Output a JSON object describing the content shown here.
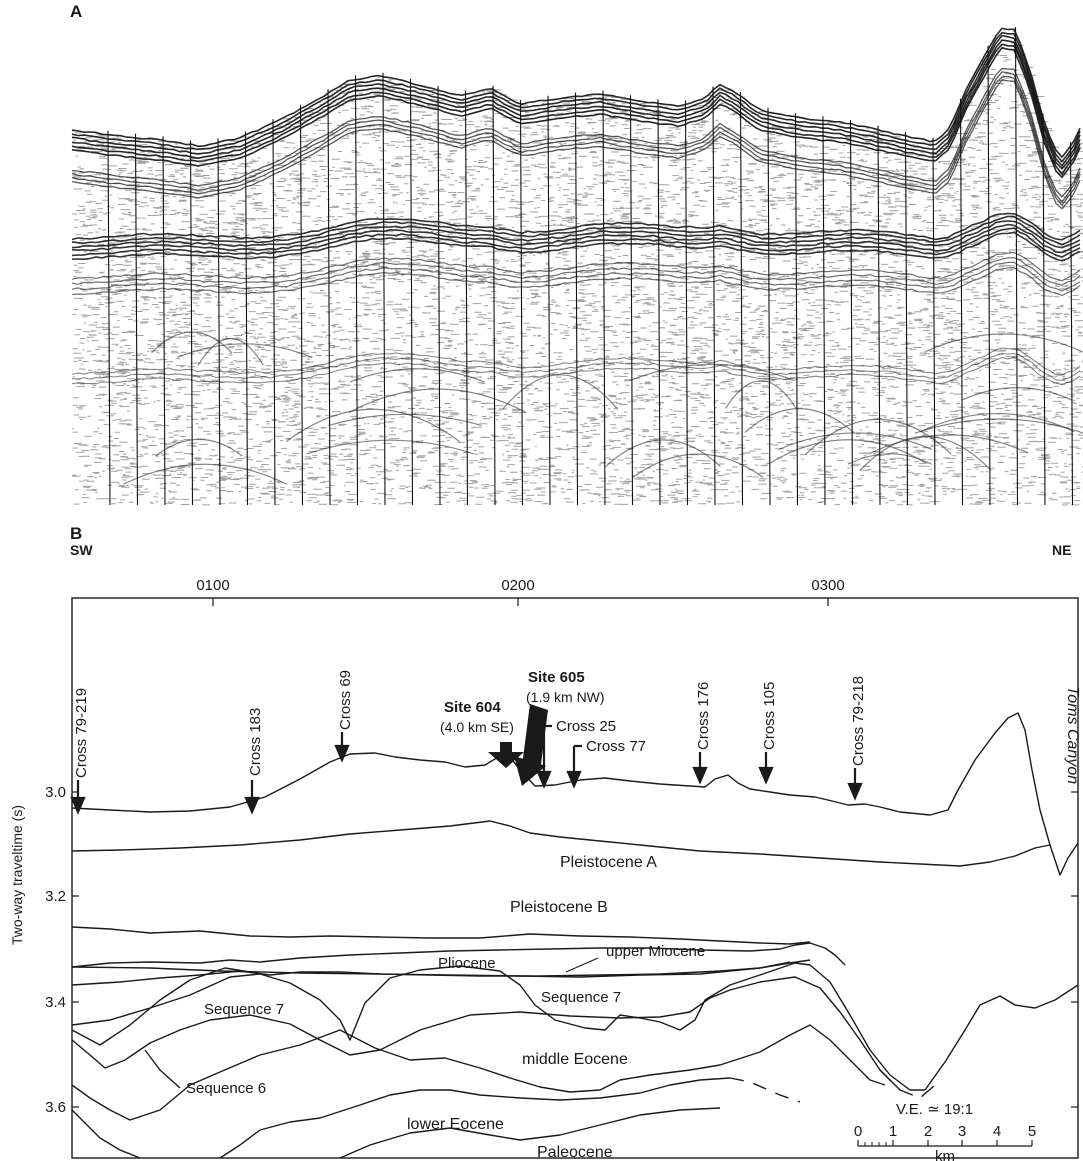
{
  "panel_a": {
    "label": "A"
  },
  "panel_b": {
    "label": "B",
    "direction_left": "SW",
    "direction_right": "NE",
    "time_ticks": [
      "0100",
      "0200",
      "0300"
    ],
    "y_axis_label": "Two-way traveltime (s)",
    "y_ticks": [
      "3.0",
      "3.2",
      "3.4",
      "3.6"
    ],
    "crosslines": {
      "cross_79_219": "Cross 79-219",
      "cross_183": "Cross 183",
      "cross_69": "Cross 69",
      "cross_176": "Cross 176",
      "cross_105": "Cross 105",
      "cross_79_218": "Cross 79-218",
      "cross_25": "Cross 25",
      "cross_77": "Cross 77"
    },
    "sites": {
      "site_604": {
        "name": "Site 604",
        "offset": "(4.0 km SE)"
      },
      "site_605": {
        "name": "Site 605",
        "offset": "(1.9 km NW)"
      }
    },
    "canyon": "Toms Canyon",
    "units": {
      "pleistocene_a": "Pleistocene A",
      "pleistocene_b": "Pleistocene B",
      "upper_miocene": "upper Miocene",
      "pliocene": "Pliocene",
      "sequence_7_right": "Sequence 7",
      "sequence_7_left": "Sequence 7",
      "middle_eocene": "middle Eocene",
      "sequence_6": "Sequence 6",
      "lower_eocene": "lower Eocene",
      "paleocene": "Paleocene"
    },
    "vertical_exaggeration": "V.E. ≃ 19:1",
    "scale_bar": {
      "ticks": [
        "0",
        "1",
        "2",
        "3",
        "4",
        "5"
      ],
      "unit": "km"
    }
  }
}
